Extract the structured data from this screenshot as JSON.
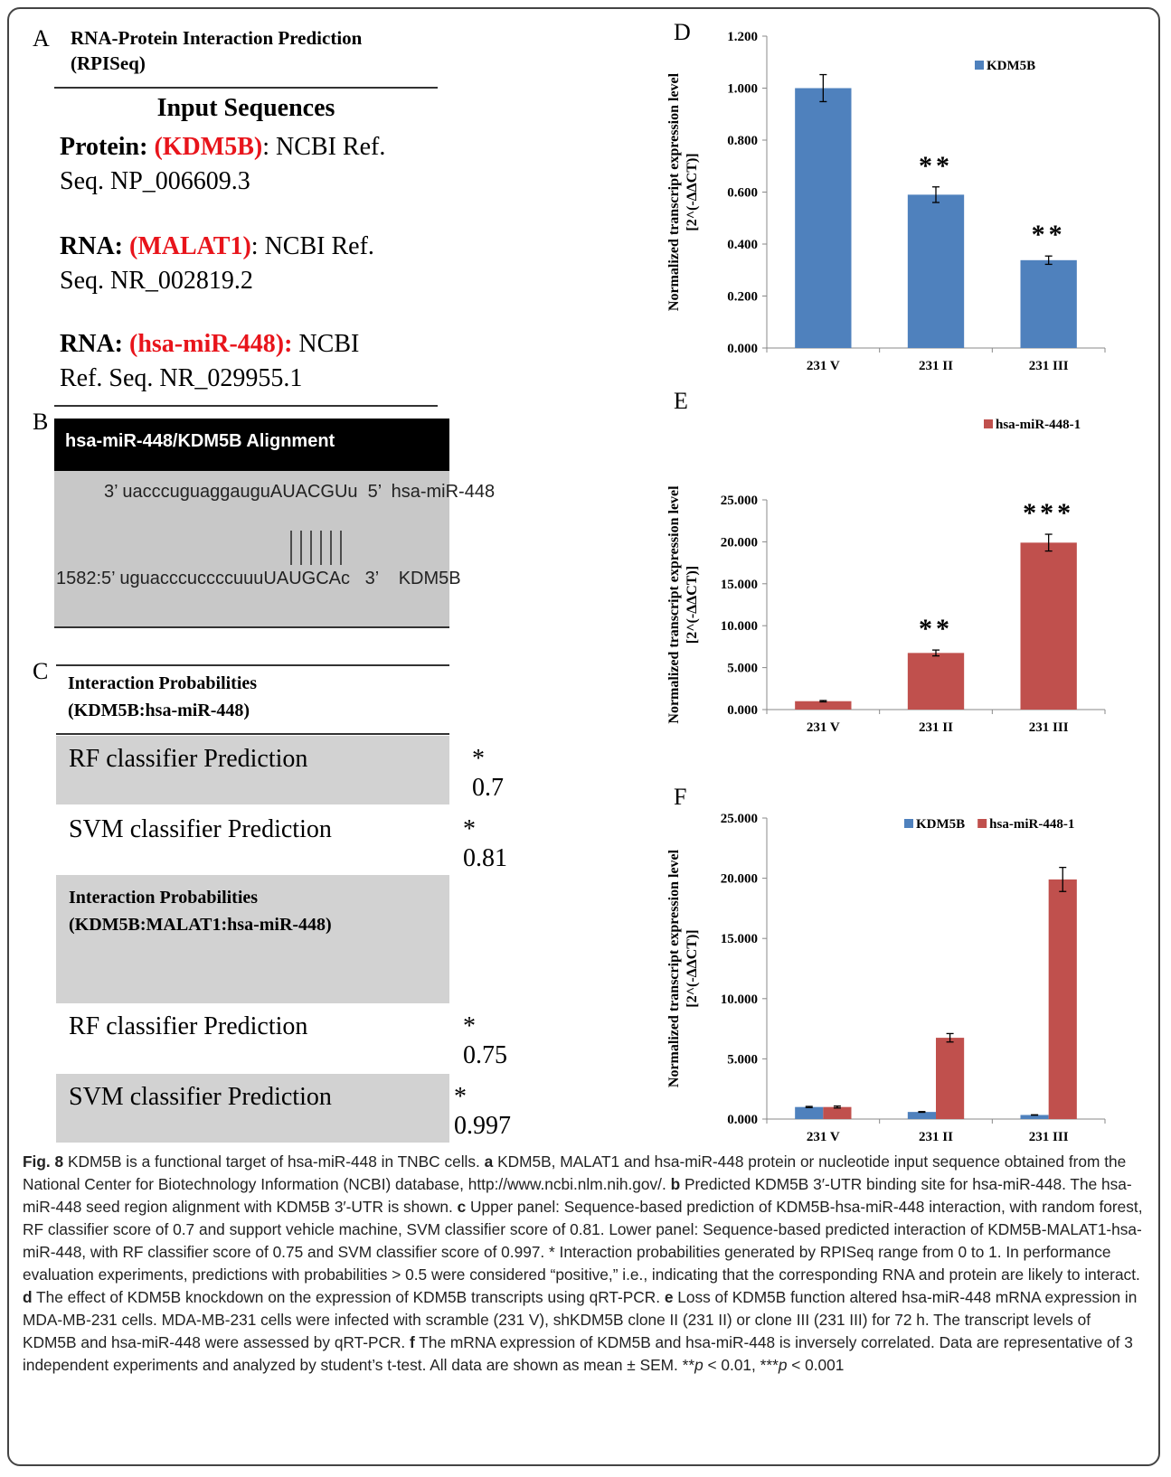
{
  "panel_a": {
    "letter": "A",
    "title": "RNA-Protein Interaction Prediction",
    "subtitle": "(RPISeq)",
    "heading": "Input Sequences",
    "entries": [
      {
        "label": "Protein:",
        "name": "(KDM5B)",
        "ref": ": NCBI Ref. Seq. NP_006609.3"
      },
      {
        "label": "RNA:",
        "name": "(MALAT1)",
        "ref": ": NCBI Ref. Seq. NR_002819.2"
      },
      {
        "label": "RNA:",
        "name": "(hsa-miR-448):",
        "ref": "NCBI Ref. Seq. NR_029955.1"
      }
    ]
  },
  "panel_b": {
    "letter": "B",
    "title": "hsa-miR-448/KDM5B Alignment",
    "line1": "3’ uacccuguaggauguAUACGUu  5’  hsa-miR-448",
    "line2": "1582:5’ uguacccuccccuuuUAUGCAc   3’    KDM5B"
  },
  "panel_c": {
    "letter": "C",
    "title": "Interaction Probabilities",
    "subtitle": "(KDM5B:hsa-miR-448)",
    "rows": [
      {
        "label": "RF classifier Prediction",
        "score": "* 0.7"
      },
      {
        "label": "SVM classifier Prediction",
        "score": "* 0.81"
      }
    ],
    "title2": "Interaction Probabilities",
    "subtitle2": "(KDM5B:MALAT1:hsa-miR-448)",
    "rows2": [
      {
        "label": "RF classifier Prediction",
        "score": "* 0.75"
      },
      {
        "label": "SVM classifier Prediction",
        "score": "* 0.997"
      }
    ]
  },
  "chart_data": [
    {
      "type": "bar",
      "letter": "D",
      "ylabel": [
        "Normalized transcript expression level",
        "[2^(-ΔΔCT)]"
      ],
      "categories": [
        "231 V",
        "231 II",
        "231 III"
      ],
      "series": [
        {
          "name": "KDM5B",
          "color": "#4f81bd",
          "values": [
            1.0,
            0.59,
            0.338
          ],
          "errors": [
            0.052,
            0.03,
            0.016
          ]
        }
      ],
      "ylim": [
        0,
        1.2
      ],
      "yticks": [
        {
          "value": 0,
          "label": "0.000"
        },
        {
          "value": 0.2,
          "label": "0.200"
        },
        {
          "value": 0.4,
          "label": "0.400"
        },
        {
          "value": 0.6,
          "label": "0.600"
        },
        {
          "value": 0.8,
          "label": "0.800"
        },
        {
          "value": 1.0,
          "label": "1.000"
        },
        {
          "value": 1.2,
          "label": "1.200"
        }
      ],
      "legend": "top-right",
      "annotations": [
        {
          "x": "231 II",
          "text": "**"
        },
        {
          "x": "231 III",
          "text": "**"
        }
      ]
    },
    {
      "type": "bar",
      "letter": "E",
      "ylabel": [
        "Normalized transcript expression level",
        "[2^(-ΔΔCT)]"
      ],
      "categories": [
        "231 V",
        "231 II",
        "231 III"
      ],
      "series": [
        {
          "name": "hsa-miR-448-1",
          "color": "#c0504d",
          "values": [
            1.0,
            6.75,
            19.9
          ],
          "errors": [
            0.08,
            0.35,
            1.0
          ]
        }
      ],
      "ylim": [
        0,
        25
      ],
      "yticks": [
        {
          "value": 0,
          "label": "0.000"
        },
        {
          "value": 5,
          "label": "5.000"
        },
        {
          "value": 10,
          "label": "10.000"
        },
        {
          "value": 15,
          "label": "15.000"
        },
        {
          "value": 20,
          "label": "20.000"
        },
        {
          "value": 25,
          "label": "25.000"
        }
      ],
      "legend": "top-right",
      "annotations": [
        {
          "x": "231 II",
          "text": "**"
        },
        {
          "x": "231 III",
          "text": "***"
        }
      ]
    },
    {
      "type": "bar",
      "letter": "F",
      "ylabel": [
        "Normalized transcript expression level",
        "[2^(-ΔΔCT)]"
      ],
      "categories": [
        "231 V",
        "231 II",
        "231 III"
      ],
      "series": [
        {
          "name": "KDM5B",
          "color": "#4f81bd",
          "values": [
            1.0,
            0.59,
            0.338
          ],
          "errors": [
            0.05,
            0.03,
            0.016
          ]
        },
        {
          "name": "hsa-miR-448-1",
          "color": "#c0504d",
          "values": [
            1.0,
            6.75,
            19.9
          ],
          "errors": [
            0.08,
            0.35,
            1.0
          ]
        }
      ],
      "ylim": [
        0,
        25
      ],
      "yticks": [
        {
          "value": 0,
          "label": "0.000"
        },
        {
          "value": 5,
          "label": "5.000"
        },
        {
          "value": 10,
          "label": "10.000"
        },
        {
          "value": 15,
          "label": "15.000"
        },
        {
          "value": 20,
          "label": "20.000"
        },
        {
          "value": 25,
          "label": "25.000"
        }
      ],
      "legend": "top-right",
      "annotations": []
    }
  ],
  "caption": [
    {
      "text": "Fig. 8",
      "bold": true
    },
    {
      "text": " KDM5B is a functional target of hsa-miR-448 in TNBC cells. "
    },
    {
      "text": "a",
      "bold": true
    },
    {
      "text": " KDM5B, MALAT1 and hsa-miR-448 protein or nucleotide input sequence obtained from the National Center for Biotechnology Information (NCBI) database, http://www.ncbi.nlm.nih.gov/. "
    },
    {
      "text": "b",
      "bold": true
    },
    {
      "text": " Predicted KDM5B 3′-UTR binding site for hsa-miR-448. The hsa-miR-448 seed region alignment with KDM5B 3′-UTR is shown. "
    },
    {
      "text": "c",
      "bold": true
    },
    {
      "text": " Upper panel: Sequence-based prediction of KDM5B-hsa-miR-448 interaction, with random forest, RF classifier score of 0.7 and support vehicle machine, SVM classifier score of 0.81. Lower panel: Sequence-based predicted interaction of KDM5B-MALAT1-hsa-miR-448, with RF classifier score of 0.75 and SVM classifier score of 0.997. * Interaction probabilities generated by RPISeq range from 0 to 1. In performance evaluation experiments, predictions with probabilities > 0.5 were considered “positive,” i.e., indicating that the corresponding RNA and protein are likely to interact. "
    },
    {
      "text": "d",
      "bold": true
    },
    {
      "text": " The effect of KDM5B knockdown on the expression of KDM5B transcripts using qRT-PCR. "
    },
    {
      "text": "e",
      "bold": true
    },
    {
      "text": " Loss of KDM5B function altered hsa-miR-448 mRNA expression in MDA-MB-231 cells. MDA-MB-231 cells were infected with scramble (231 V), shKDM5B clone II (231 II) or clone III (231 III) for 72 h. The transcript levels of KDM5B and hsa-miR-448 were assessed by qRT-PCR. "
    },
    {
      "text": "f",
      "bold": true
    },
    {
      "text": " The mRNA expression of KDM5B and hsa-miR-448 is inversely correlated. Data are representative of 3 independent experiments and analyzed by student’s t-test. All data are shown as mean ± SEM. **"
    },
    {
      "text": "p",
      "italic": true
    },
    {
      "text": " < 0.01, ***"
    },
    {
      "text": "p",
      "italic": true
    },
    {
      "text": " < 0.001"
    }
  ]
}
